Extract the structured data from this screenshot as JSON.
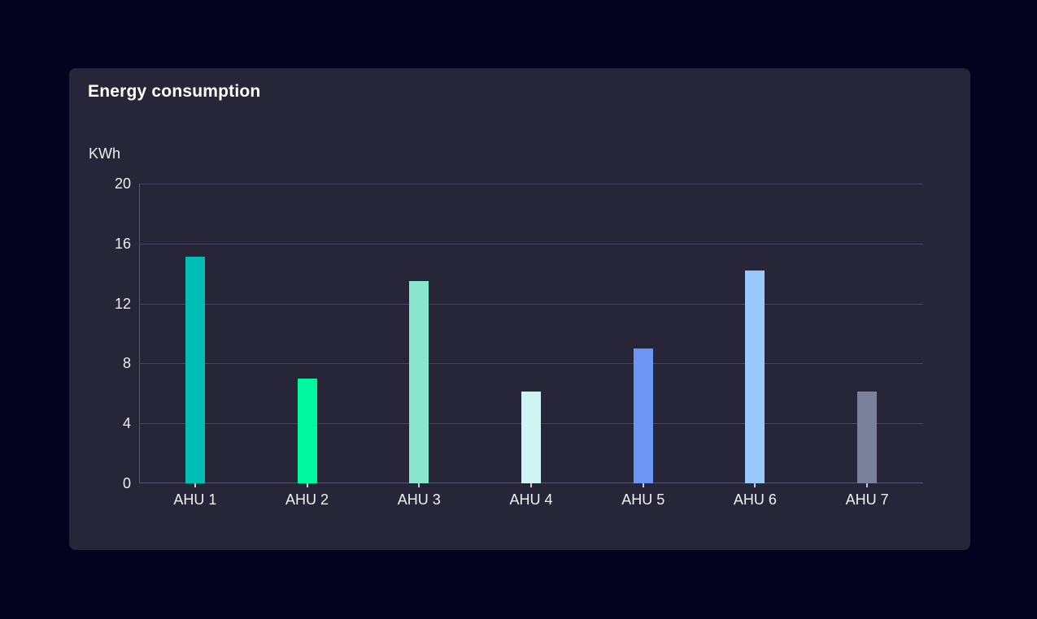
{
  "page": {
    "background": "#04021F"
  },
  "card": {
    "background": "#272639"
  },
  "chart_data": {
    "type": "bar",
    "title": "Energy consumption",
    "ylabel": "KWh",
    "xlabel": "",
    "categories": [
      "AHU 1",
      "AHU 2",
      "AHU 3",
      "AHU 4",
      "AHU 5",
      "AHU 6",
      "AHU 7"
    ],
    "values": [
      15.1,
      7,
      13.5,
      6.1,
      9,
      14.2,
      6.1
    ],
    "bar_colors": [
      "#00BEB3",
      "#00F79F",
      "#89E6CC",
      "#CEF4F4",
      "#6C95F4",
      "#98C8FC",
      "#7B809B"
    ],
    "ylim": [
      0,
      20
    ],
    "yticks": [
      0,
      4,
      8,
      12,
      16,
      20
    ],
    "grid": "horizontal",
    "legend": "none",
    "styles": {
      "gridline_color": "#45455E",
      "axis_color": "#585870",
      "tick_color": "#C9C9D4",
      "label_color": "#EDEDF2",
      "title_color": "#FFFFFF"
    }
  }
}
